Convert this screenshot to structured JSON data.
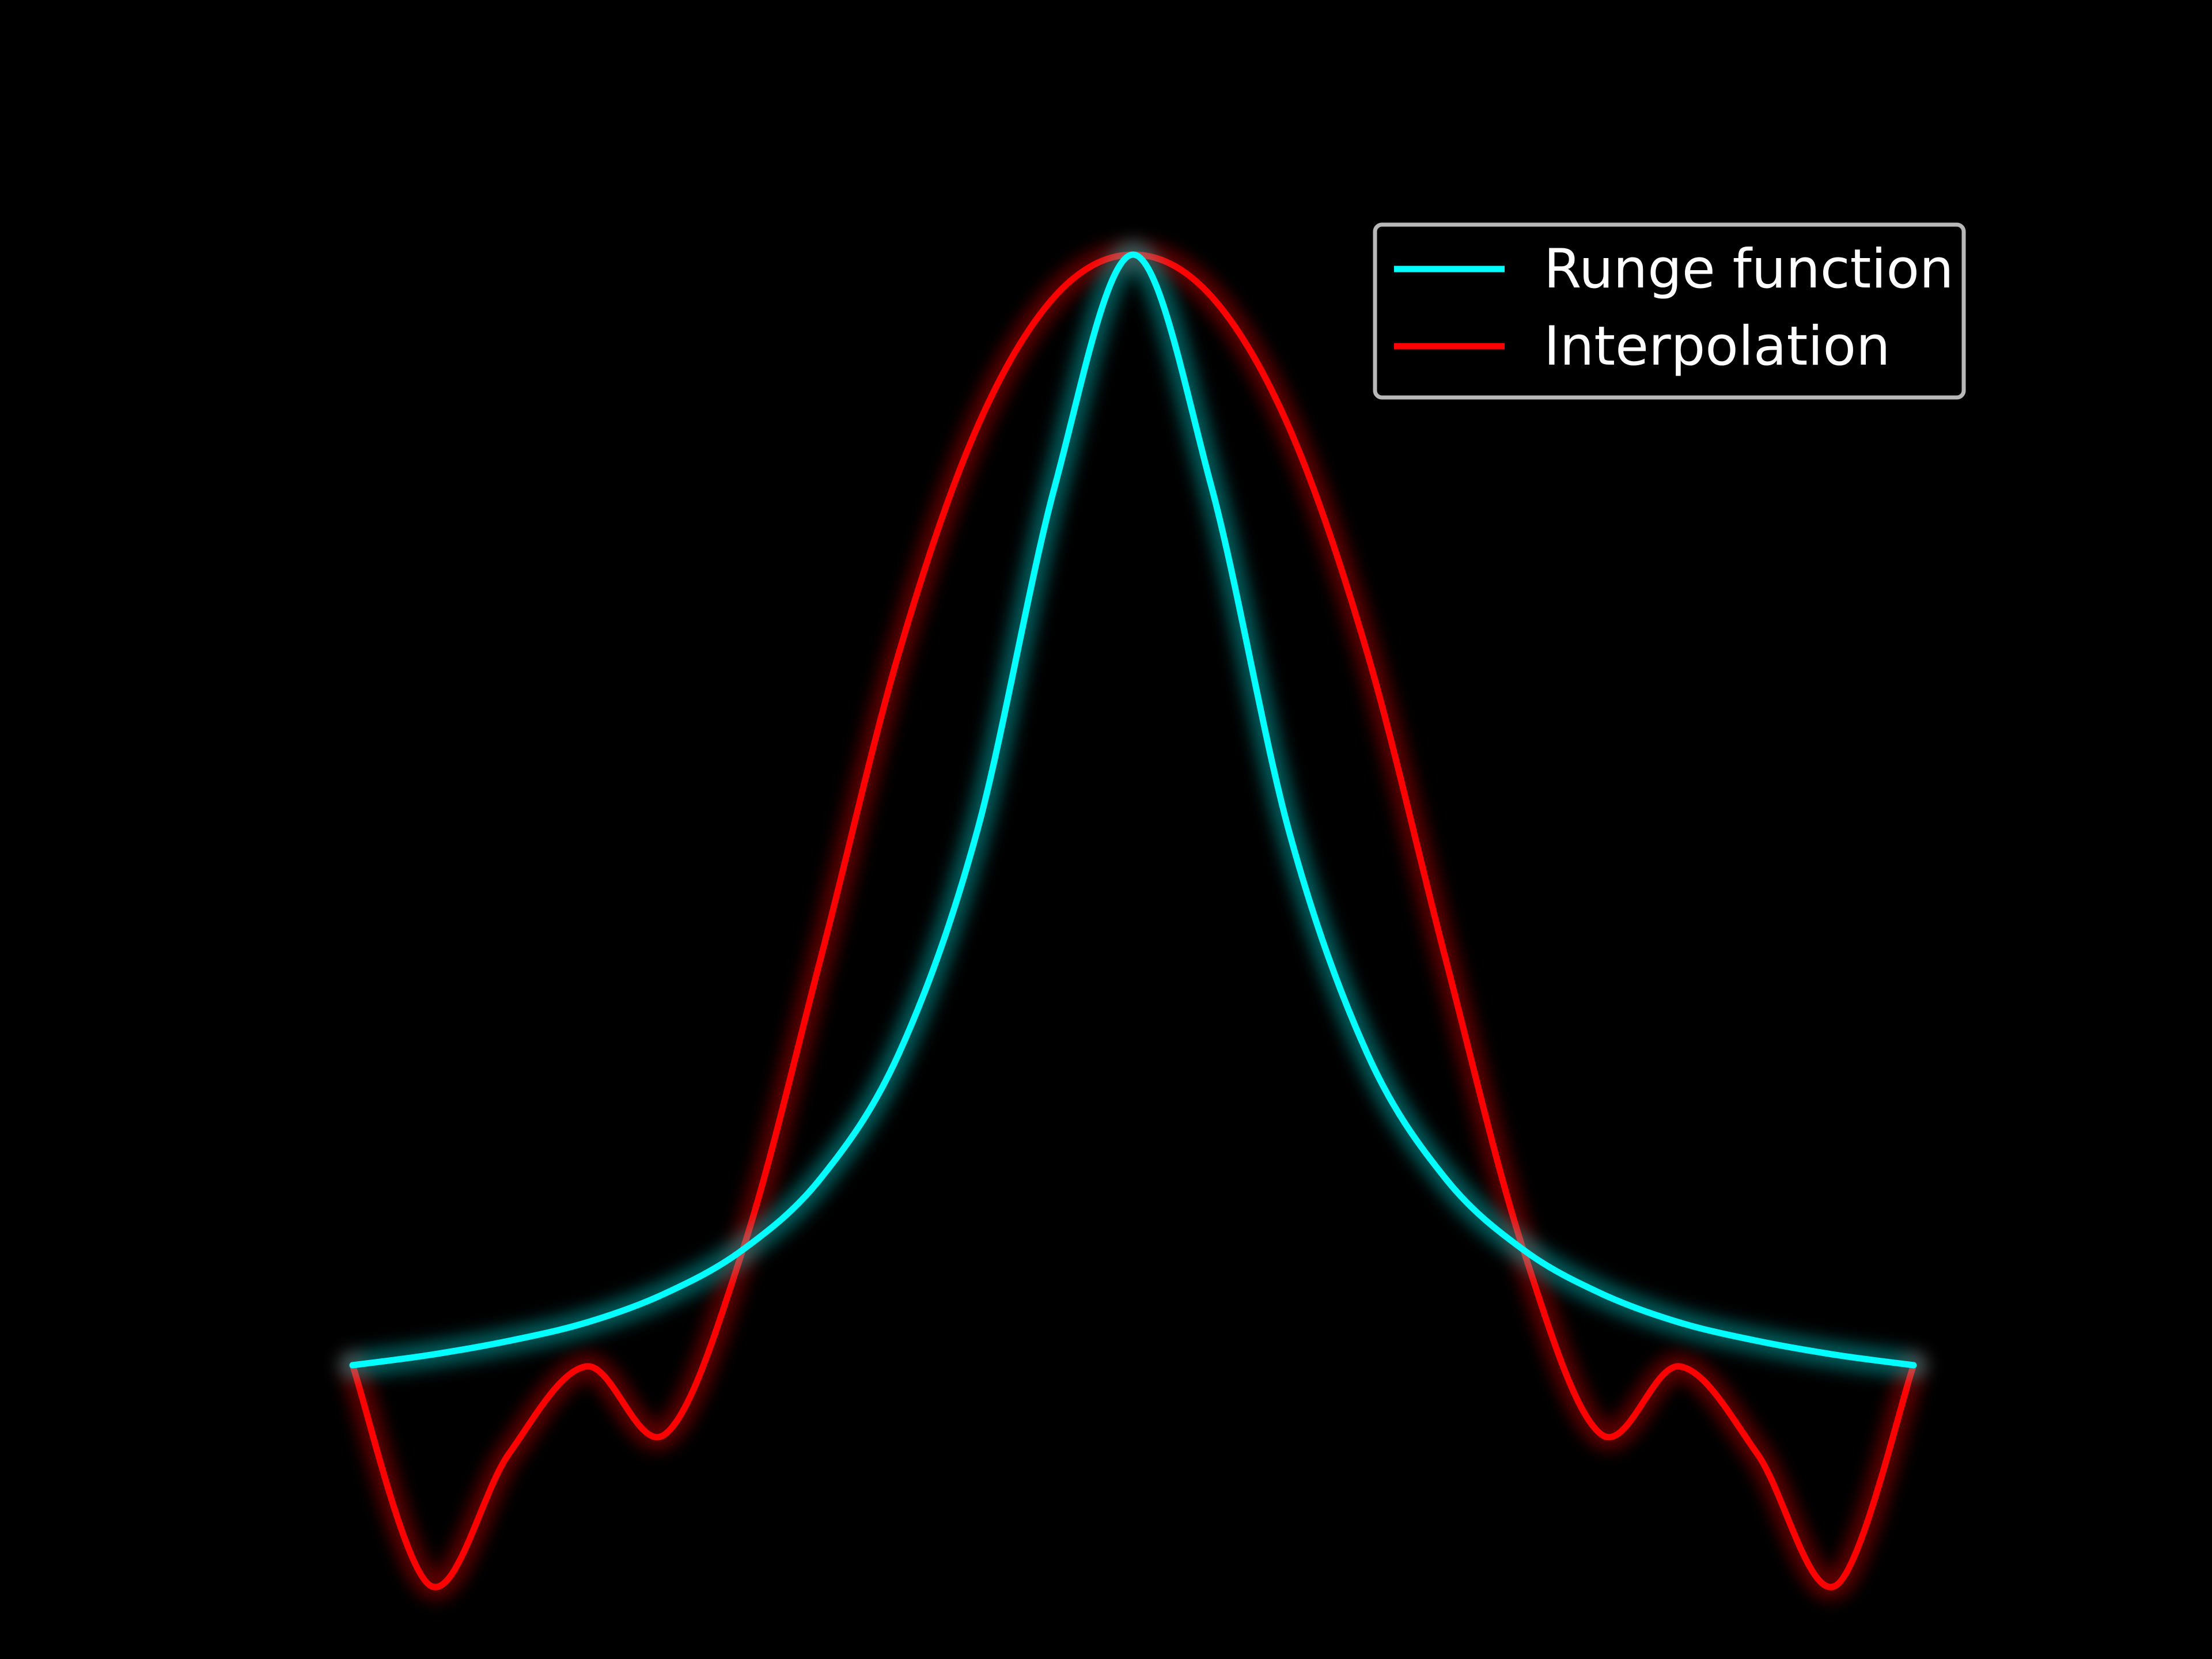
{
  "chart_data": {
    "type": "line",
    "title": "",
    "xlabel": "",
    "ylabel": "",
    "axes_visible": false,
    "grid": false,
    "background": "#000000",
    "legend_position": "top-right",
    "xlim": [
      -1,
      1
    ],
    "ylim": [
      -0.3,
      1.1
    ],
    "series": [
      {
        "name": "Runge function",
        "color": "#00ffff",
        "function": "1/(1+25x^2)",
        "x": [
          -1.0,
          -0.9,
          -0.8,
          -0.7,
          -0.6,
          -0.5,
          -0.4,
          -0.3,
          -0.2,
          -0.1,
          0.0,
          0.1,
          0.2,
          0.3,
          0.4,
          0.5,
          0.6,
          0.7,
          0.8,
          0.9,
          1.0
        ],
        "values": [
          0.038,
          0.047,
          0.059,
          0.075,
          0.1,
          0.138,
          0.2,
          0.308,
          0.5,
          0.8,
          1.0,
          0.8,
          0.5,
          0.308,
          0.2,
          0.138,
          0.1,
          0.075,
          0.059,
          0.047,
          0.038
        ]
      },
      {
        "name": "Interpolation",
        "color": "#ff0000",
        "function": "degree-8 polynomial interpolant, equispaced nodes",
        "x": [
          -1.0,
          -0.9,
          -0.8,
          -0.7,
          -0.6,
          -0.5,
          -0.4,
          -0.3,
          -0.2,
          -0.1,
          0.0,
          0.1,
          0.2,
          0.3,
          0.4,
          0.5,
          0.6,
          0.7,
          0.8,
          0.9,
          1.0
        ],
        "values": [
          0.038,
          -0.153,
          -0.039,
          0.037,
          -0.022,
          0.138,
          0.391,
          0.655,
          0.85,
          0.964,
          1.0,
          0.964,
          0.85,
          0.655,
          0.391,
          0.138,
          -0.022,
          0.037,
          -0.039,
          -0.153,
          0.038
        ]
      }
    ]
  }
}
